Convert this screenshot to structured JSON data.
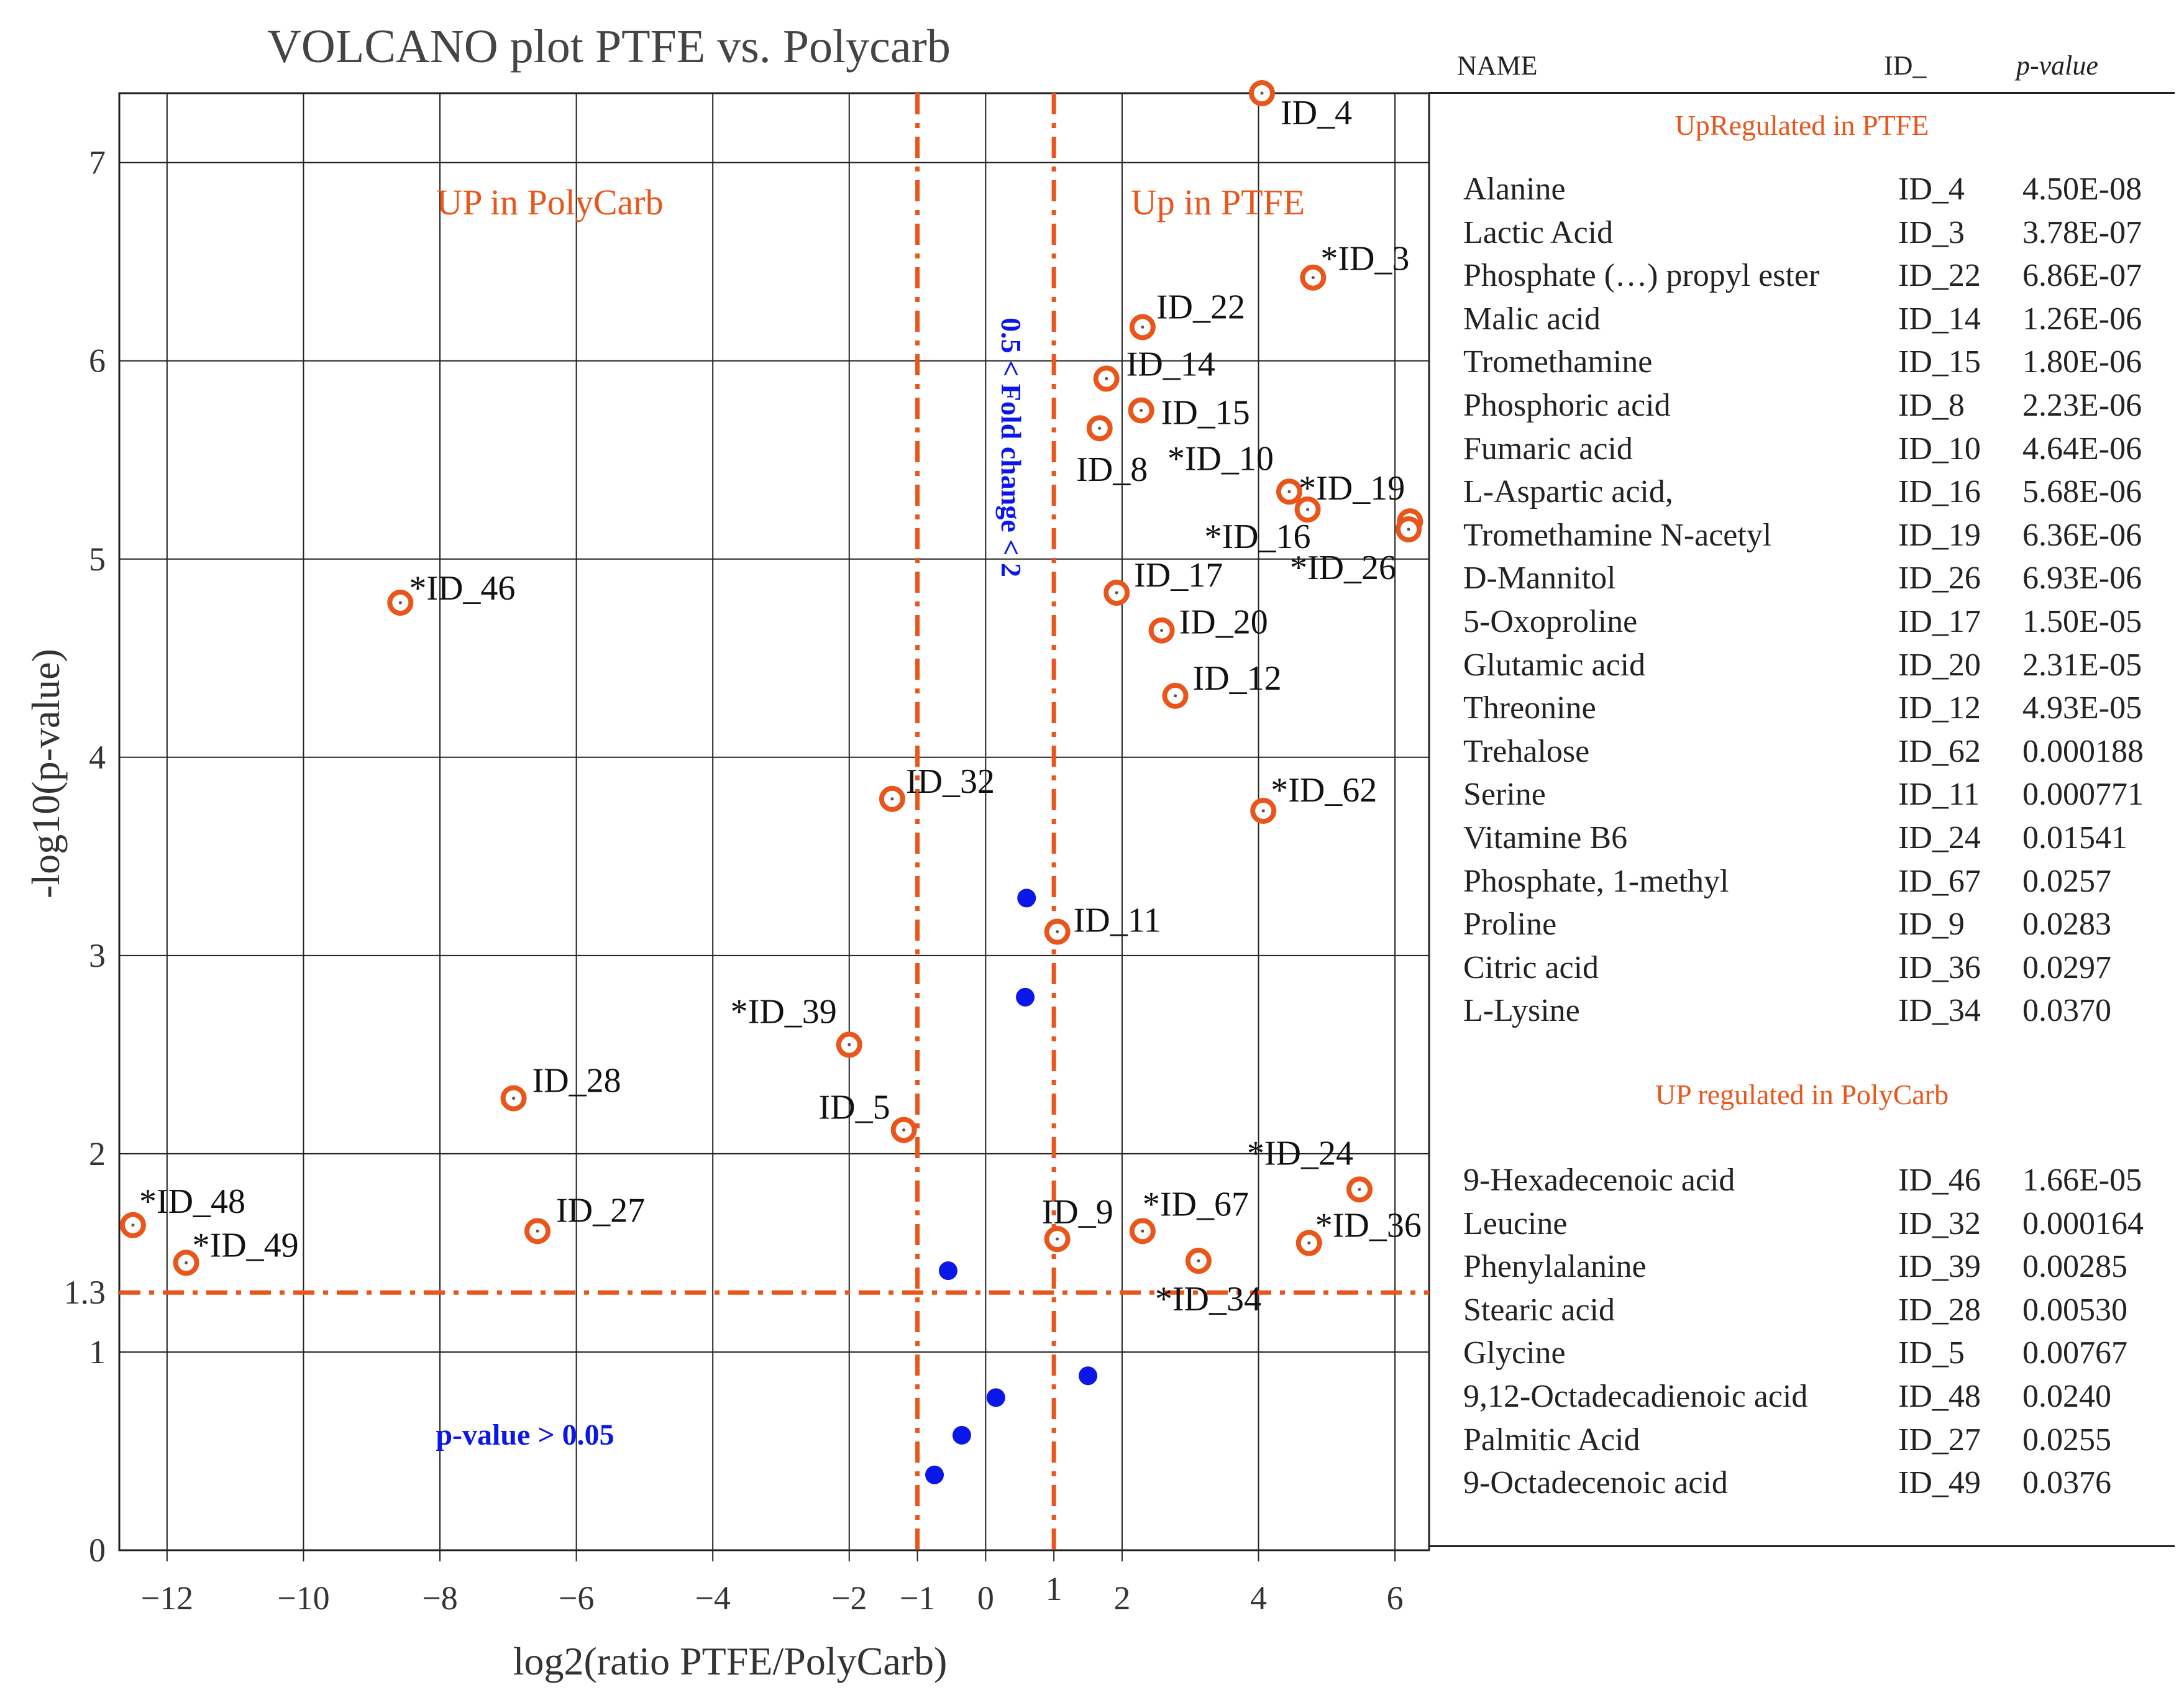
{
  "chart_data": {
    "type": "scatter",
    "title": "VOLCANO plot PTFE vs. Polycarb",
    "xlabel": "log2(ratio PTFE/PolyCarb)",
    "ylabel": "-log10(p-value)",
    "xlim": [
      -12.7,
      6.5
    ],
    "ylim": [
      0,
      7.35
    ],
    "grid": true,
    "x_ticks": [
      {
        "value": -12,
        "label": "−12"
      },
      {
        "value": -10,
        "label": "−10"
      },
      {
        "value": -8,
        "label": "−8"
      },
      {
        "value": -6,
        "label": "−6"
      },
      {
        "value": -4,
        "label": "−4"
      },
      {
        "value": -2,
        "label": "−2"
      },
      {
        "value": -1,
        "label": "−1"
      },
      {
        "value": 0,
        "label": "0"
      },
      {
        "value": 1,
        "label": "1"
      },
      {
        "value": 2,
        "label": "2"
      },
      {
        "value": 4,
        "label": "4"
      },
      {
        "value": 6,
        "label": "6"
      }
    ],
    "y_ticks": [
      {
        "value": 0,
        "label": "0"
      },
      {
        "value": 1,
        "label": "1"
      },
      {
        "value": 1.3,
        "label": "1.3"
      },
      {
        "value": 2,
        "label": "2"
      },
      {
        "value": 3,
        "label": "3"
      },
      {
        "value": 4,
        "label": "4"
      },
      {
        "value": 5,
        "label": "5"
      },
      {
        "value": 6,
        "label": "6"
      },
      {
        "value": 7,
        "label": "7"
      }
    ],
    "thresholds": {
      "fold_change_lines": [
        -1,
        1
      ],
      "pvalue_line": 1.3
    },
    "annotations": {
      "up_polycarb": "UP in PolyCarb",
      "up_ptfe": "Up in PTFE",
      "fold_change": "0.5 < Fold change < 2",
      "pvalue_region": "p-value > 0.05"
    },
    "colors": {
      "significant": "#e8561b",
      "nonsignificant": "#0a17e8",
      "threshold": "#e8561b",
      "annotation_blue": "#0a17e8"
    },
    "series": [
      {
        "name": "significant",
        "marker": "ring",
        "points": [
          {
            "label": "ID_4",
            "x": 4.05,
            "y": 7.35
          },
          {
            "label": "*ID_3",
            "x": 4.8,
            "y": 6.42
          },
          {
            "label": "ID_22",
            "x": 2.3,
            "y": 6.17
          },
          {
            "label": "ID_14",
            "x": 1.77,
            "y": 5.91
          },
          {
            "label": "ID_15",
            "x": 2.28,
            "y": 5.75
          },
          {
            "label": "ID_8",
            "x": 1.67,
            "y": 5.66
          },
          {
            "label": "*ID_10",
            "x": 4.45,
            "y": 5.34
          },
          {
            "label": "*ID_19",
            "x": 6.22,
            "y": 5.19
          },
          {
            "label": "*ID_16",
            "x": 4.72,
            "y": 5.25
          },
          {
            "label": "*ID_26",
            "x": 6.2,
            "y": 5.15
          },
          {
            "label": "ID_17",
            "x": 1.92,
            "y": 4.83
          },
          {
            "label": "ID_20",
            "x": 2.58,
            "y": 4.64
          },
          {
            "label": "ID_12",
            "x": 2.78,
            "y": 4.31
          },
          {
            "label": "*ID_46",
            "x": -8.58,
            "y": 4.78
          },
          {
            "label": "ID_32",
            "x": -1.37,
            "y": 3.79
          },
          {
            "label": "*ID_62",
            "x": 4.07,
            "y": 3.73
          },
          {
            "label": "ID_11",
            "x": 1.05,
            "y": 3.12
          },
          {
            "label": "*ID_39",
            "x": -2.0,
            "y": 2.55
          },
          {
            "label": "ID_28",
            "x": -6.92,
            "y": 2.28
          },
          {
            "label": "ID_5",
            "x": -1.2,
            "y": 2.12
          },
          {
            "label": "*ID_24",
            "x": 5.48,
            "y": 1.82
          },
          {
            "label": "*ID_48",
            "x": -12.5,
            "y": 1.64
          },
          {
            "label": "ID_27",
            "x": -6.57,
            "y": 1.61
          },
          {
            "label": "ID_9",
            "x": 1.05,
            "y": 1.57
          },
          {
            "label": "*ID_67",
            "x": 2.3,
            "y": 1.61
          },
          {
            "label": "*ID_36",
            "x": 4.74,
            "y": 1.55
          },
          {
            "label": "*ID_49",
            "x": -11.72,
            "y": 1.45
          },
          {
            "label": "*ID_34",
            "x": 3.12,
            "y": 1.46
          }
        ]
      },
      {
        "name": "not significant",
        "marker": "dot",
        "points": [
          {
            "x": 0.6,
            "y": 3.29
          },
          {
            "x": 0.58,
            "y": 2.79
          },
          {
            "x": -0.55,
            "y": 1.41
          },
          {
            "x": 1.5,
            "y": 0.88
          },
          {
            "x": 0.15,
            "y": 0.77
          },
          {
            "x": -0.35,
            "y": 0.58
          },
          {
            "x": -0.75,
            "y": 0.38
          }
        ]
      }
    ]
  },
  "table": {
    "headers": {
      "name": "NAME",
      "id": "ID_",
      "pvalue": "p-value"
    },
    "sections": [
      {
        "title": "UpRegulated in PTFE",
        "rows": [
          {
            "name": "Alanine",
            "id": "ID_4",
            "pvalue": "4.50E-08"
          },
          {
            "name": "Lactic Acid",
            "id": "ID_3",
            "pvalue": "3.78E-07"
          },
          {
            "name": "Phosphate (…) propyl ester",
            "id": "ID_22",
            "pvalue": "6.86E-07"
          },
          {
            "name": "Malic acid",
            "id": "ID_14",
            "pvalue": "1.26E-06"
          },
          {
            "name": "Tromethamine",
            "id": "ID_15",
            "pvalue": "1.80E-06"
          },
          {
            "name": "Phosphoric acid",
            "id": "ID_8",
            "pvalue": "2.23E-06"
          },
          {
            "name": "Fumaric acid",
            "id": "ID_10",
            "pvalue": "4.64E-06"
          },
          {
            "name": "L-Aspartic acid,",
            "id": "ID_16",
            "pvalue": "5.68E-06"
          },
          {
            "name": "Tromethamine N-acetyl",
            "id": "ID_19",
            "pvalue": "6.36E-06"
          },
          {
            "name": "D-Mannitol",
            "id": "ID_26",
            "pvalue": "6.93E-06"
          },
          {
            "name": "5-Oxoproline",
            "id": "ID_17",
            "pvalue": "1.50E-05"
          },
          {
            "name": "Glutamic acid",
            "id": "ID_20",
            "pvalue": "2.31E-05"
          },
          {
            "name": "Threonine",
            "id": "ID_12",
            "pvalue": "4.93E-05"
          },
          {
            "name": "Trehalose",
            "id": "ID_62",
            "pvalue": "0.000188"
          },
          {
            "name": "Serine",
            "id": "ID_11",
            "pvalue": "0.000771"
          },
          {
            "name": "Vitamine B6",
            "id": "ID_24",
            "pvalue": "0.01541"
          },
          {
            "name": "Phosphate, 1-methyl",
            "id": "ID_67",
            "pvalue": "0.0257"
          },
          {
            "name": "Proline",
            "id": "ID_9",
            "pvalue": "0.0283"
          },
          {
            "name": "Citric acid",
            "id": "ID_36",
            "pvalue": "0.0297"
          },
          {
            "name": "L-Lysine",
            "id": "ID_34",
            "pvalue": "0.0370"
          }
        ]
      },
      {
        "title": "UP regulated in PolyCarb",
        "rows": [
          {
            "name": "9-Hexadecenoic acid",
            "id": "ID_46",
            "pvalue": "1.66E-05"
          },
          {
            "name": "Leucine",
            "id": "ID_32",
            "pvalue": "0.000164"
          },
          {
            "name": "Phenylalanine",
            "id": "ID_39",
            "pvalue": "0.00285"
          },
          {
            "name": "Stearic acid",
            "id": "ID_28",
            "pvalue": "0.00530"
          },
          {
            "name": "Glycine",
            "id": "ID_5",
            "pvalue": "0.00767"
          },
          {
            "name": "9,12-Octadecadienoic acid",
            "id": "ID_48",
            "pvalue": "0.0240"
          },
          {
            "name": "Palmitic Acid",
            "id": "ID_27",
            "pvalue": "0.0255"
          },
          {
            "name": "9-Octadecenoic acid",
            "id": "ID_49",
            "pvalue": "0.0376"
          }
        ]
      }
    ]
  }
}
